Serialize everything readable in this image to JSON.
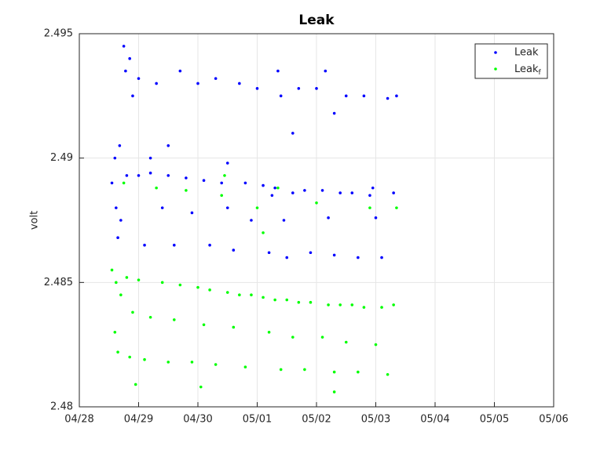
{
  "chart_data": {
    "type": "scatter",
    "title": "Leak",
    "y_label": "volt",
    "xlim": [
      0,
      8
    ],
    "xticks": [
      {
        "value": 0,
        "label": "04/28"
      },
      {
        "value": 1,
        "label": "04/29"
      },
      {
        "value": 2,
        "label": "04/30"
      },
      {
        "value": 3,
        "label": "05/01"
      },
      {
        "value": 4,
        "label": "05/02"
      },
      {
        "value": 5,
        "label": "05/03"
      },
      {
        "value": 6,
        "label": "05/04"
      },
      {
        "value": 7,
        "label": "05/05"
      },
      {
        "value": 8,
        "label": "05/06"
      }
    ],
    "ylim": [
      2.48,
      2.495
    ],
    "yticks": [
      2.48,
      2.485,
      2.49,
      2.495
    ],
    "grid": true,
    "legend": "northeast",
    "series": [
      {
        "name": "Leak",
        "color": "#0000ff",
        "x": [
          0.55,
          0.6,
          0.62,
          0.65,
          0.68,
          0.7,
          0.75,
          0.78,
          0.8,
          0.85,
          0.9,
          1.0,
          1.0,
          1.1,
          1.2,
          1.3,
          1.4,
          1.5,
          1.6,
          1.7,
          1.8,
          1.9,
          2.0,
          2.1,
          2.2,
          2.3,
          2.4,
          2.5,
          2.6,
          2.7,
          2.8,
          2.9,
          3.0,
          3.1,
          3.2,
          3.3,
          3.35,
          3.4,
          3.45,
          3.5,
          3.6,
          3.7,
          3.8,
          3.9,
          4.0,
          4.1,
          4.15,
          4.2,
          4.3,
          4.4,
          4.5,
          4.6,
          4.7,
          4.8,
          4.9,
          5.0,
          5.1,
          5.2,
          5.3,
          5.35,
          1.2,
          2.5,
          3.6,
          4.3,
          1.5,
          3.25,
          4.95
        ],
        "values": [
          2.489,
          2.49,
          2.488,
          2.4868,
          2.4905,
          2.4875,
          2.4945,
          2.4935,
          2.4893,
          2.494,
          2.4925,
          2.4893,
          2.4932,
          2.4865,
          2.4894,
          2.493,
          2.488,
          2.4893,
          2.4865,
          2.4935,
          2.4892,
          2.4878,
          2.493,
          2.4891,
          2.4865,
          2.4932,
          2.489,
          2.488,
          2.4863,
          2.493,
          2.489,
          2.4875,
          2.4928,
          2.4889,
          2.4862,
          2.4888,
          2.4935,
          2.4925,
          2.4875,
          2.486,
          2.4886,
          2.4928,
          2.4887,
          2.4862,
          2.4928,
          2.4887,
          2.4935,
          2.4876,
          2.4861,
          2.4886,
          2.4925,
          2.4886,
          2.486,
          2.4925,
          2.4885,
          2.4876,
          2.486,
          2.4924,
          2.4886,
          2.4925,
          2.49,
          2.4898,
          2.491,
          2.4918,
          2.4905,
          2.4885,
          2.4888
        ]
      },
      {
        "name": "Leak_f",
        "color": "#00ff00",
        "x": [
          0.55,
          0.6,
          0.62,
          0.65,
          0.7,
          0.75,
          0.8,
          0.85,
          0.9,
          1.0,
          1.1,
          1.2,
          1.3,
          1.4,
          1.5,
          1.6,
          1.7,
          1.8,
          1.9,
          2.0,
          2.1,
          2.2,
          2.3,
          2.4,
          2.5,
          2.6,
          2.7,
          2.8,
          2.9,
          3.0,
          3.1,
          3.2,
          3.3,
          3.4,
          3.5,
          3.6,
          3.7,
          3.8,
          3.9,
          4.0,
          4.1,
          4.2,
          4.3,
          4.4,
          4.5,
          4.6,
          4.7,
          4.8,
          4.9,
          5.0,
          5.1,
          5.2,
          5.3,
          5.35,
          2.45,
          3.35,
          0.95,
          2.05,
          3.1,
          4.3
        ],
        "values": [
          2.4855,
          2.483,
          2.485,
          2.4822,
          2.4845,
          2.489,
          2.4852,
          2.482,
          2.4838,
          2.4851,
          2.4819,
          2.4836,
          2.4888,
          2.485,
          2.4818,
          2.4835,
          2.4849,
          2.4887,
          2.4818,
          2.4848,
          2.4833,
          2.4847,
          2.4817,
          2.4885,
          2.4846,
          2.4832,
          2.4845,
          2.4816,
          2.4845,
          2.488,
          2.4844,
          2.483,
          2.4843,
          2.4815,
          2.4843,
          2.4828,
          2.4842,
          2.4815,
          2.4842,
          2.4882,
          2.4828,
          2.4841,
          2.4814,
          2.4841,
          2.4826,
          2.4841,
          2.4814,
          2.484,
          2.488,
          2.4825,
          2.484,
          2.4813,
          2.4841,
          2.488,
          2.4893,
          2.4888,
          2.4809,
          2.4808,
          2.487,
          2.4806
        ]
      }
    ]
  }
}
